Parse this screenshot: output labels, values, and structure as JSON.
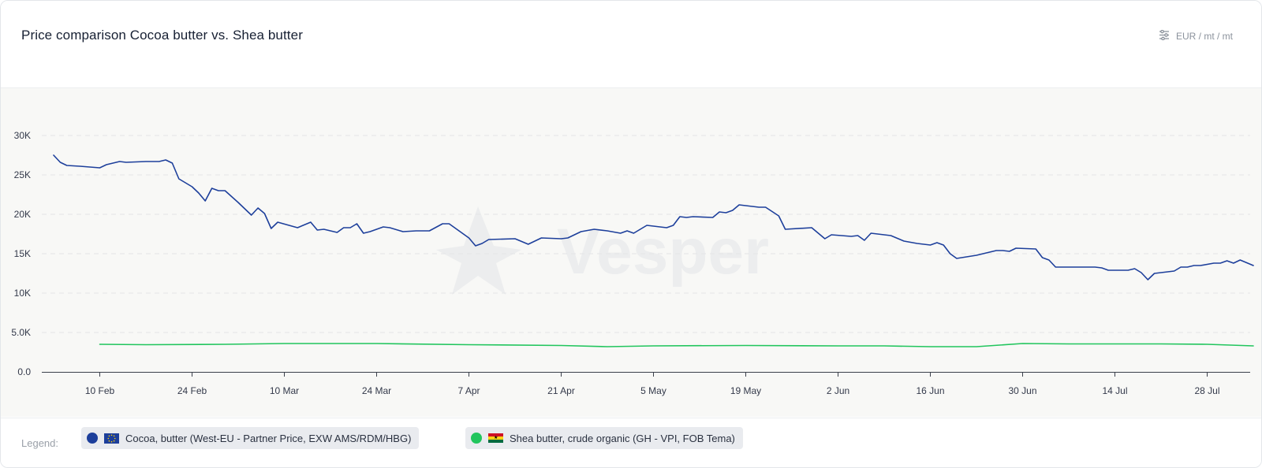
{
  "header": {
    "title": "Price comparison Cocoa butter vs. Shea butter",
    "unit_label": "EUR / mt / mt",
    "unit_icon": "sliders-icon"
  },
  "watermark": {
    "text": "Vesper"
  },
  "legend": {
    "label": "Legend:",
    "items": [
      {
        "name": "Cocoa, butter (West-EU - Partner Price, EXW AMS/RDM/HBG)",
        "color": "#1d3f9b",
        "flag": "eu-flag-icon"
      },
      {
        "name": "Shea butter, crude organic (GH - VPI, FOB Tema)",
        "color": "#21c55d",
        "flag": "ghana-flag-icon"
      }
    ]
  },
  "chart_data": {
    "type": "line",
    "title": "Price comparison Cocoa butter vs. Shea butter",
    "xlabel": "",
    "ylabel": "",
    "ylim": [
      0,
      30000
    ],
    "grid": true,
    "legend_position": "bottom",
    "y_ticks": [
      {
        "value": 0,
        "label": "0.0"
      },
      {
        "value": 5000,
        "label": "5.0K"
      },
      {
        "value": 10000,
        "label": "10K"
      },
      {
        "value": 15000,
        "label": "15K"
      },
      {
        "value": 20000,
        "label": "20K"
      },
      {
        "value": 25000,
        "label": "25K"
      },
      {
        "value": 30000,
        "label": "30K"
      }
    ],
    "x_ticks": [
      "10 Feb",
      "24 Feb",
      "10 Mar",
      "24 Mar",
      "7 Apr",
      "21 Apr",
      "5 May",
      "19 May",
      "2 Jun",
      "16 Jun",
      "30 Jun",
      "14 Jul",
      "28 Jul"
    ],
    "x_range": [
      "2025-02-03",
      "2025-08-04"
    ],
    "series": [
      {
        "name": "Cocoa, butter (West-EU - Partner Price, EXW AMS/RDM/HBG)",
        "color": "#1d3f9b",
        "points": [
          [
            "2025-02-03",
            27500
          ],
          [
            "2025-02-04",
            26600
          ],
          [
            "2025-02-05",
            26200
          ],
          [
            "2025-02-07",
            26100
          ],
          [
            "2025-02-10",
            25900
          ],
          [
            "2025-02-11",
            26300
          ],
          [
            "2025-02-13",
            26700
          ],
          [
            "2025-02-14",
            26600
          ],
          [
            "2025-02-17",
            26700
          ],
          [
            "2025-02-19",
            26700
          ],
          [
            "2025-02-20",
            26900
          ],
          [
            "2025-02-21",
            26500
          ],
          [
            "2025-02-22",
            24500
          ],
          [
            "2025-02-24",
            23500
          ],
          [
            "2025-02-25",
            22700
          ],
          [
            "2025-02-26",
            21700
          ],
          [
            "2025-02-27",
            23300
          ],
          [
            "2025-02-28",
            23000
          ],
          [
            "2025-03-01",
            23000
          ],
          [
            "2025-03-03",
            21500
          ],
          [
            "2025-03-05",
            19900
          ],
          [
            "2025-03-06",
            20800
          ],
          [
            "2025-03-07",
            20100
          ],
          [
            "2025-03-08",
            18200
          ],
          [
            "2025-03-09",
            19000
          ],
          [
            "2025-03-12",
            18300
          ],
          [
            "2025-03-14",
            19000
          ],
          [
            "2025-03-15",
            18000
          ],
          [
            "2025-03-16",
            18100
          ],
          [
            "2025-03-18",
            17700
          ],
          [
            "2025-03-19",
            18300
          ],
          [
            "2025-03-20",
            18300
          ],
          [
            "2025-03-21",
            18800
          ],
          [
            "2025-03-22",
            17600
          ],
          [
            "2025-03-23",
            17800
          ],
          [
            "2025-03-25",
            18400
          ],
          [
            "2025-03-26",
            18300
          ],
          [
            "2025-03-28",
            17800
          ],
          [
            "2025-03-30",
            17900
          ],
          [
            "2025-04-01",
            17900
          ],
          [
            "2025-04-03",
            18800
          ],
          [
            "2025-04-04",
            18800
          ],
          [
            "2025-04-07",
            17000
          ],
          [
            "2025-04-08",
            16000
          ],
          [
            "2025-04-09",
            16300
          ],
          [
            "2025-04-10",
            16800
          ],
          [
            "2025-04-14",
            16900
          ],
          [
            "2025-04-16",
            16200
          ],
          [
            "2025-04-18",
            17000
          ],
          [
            "2025-04-21",
            16900
          ],
          [
            "2025-04-22",
            17000
          ],
          [
            "2025-04-24",
            17800
          ],
          [
            "2025-04-26",
            18100
          ],
          [
            "2025-04-28",
            17900
          ],
          [
            "2025-04-30",
            17600
          ],
          [
            "2025-05-01",
            17900
          ],
          [
            "2025-05-02",
            17600
          ],
          [
            "2025-05-04",
            18600
          ],
          [
            "2025-05-07",
            18300
          ],
          [
            "2025-05-08",
            18600
          ],
          [
            "2025-05-09",
            19700
          ],
          [
            "2025-05-10",
            19600
          ],
          [
            "2025-05-11",
            19700
          ],
          [
            "2025-05-14",
            19600
          ],
          [
            "2025-05-15",
            20300
          ],
          [
            "2025-05-16",
            20200
          ],
          [
            "2025-05-17",
            20500
          ],
          [
            "2025-05-18",
            21200
          ],
          [
            "2025-05-21",
            20900
          ],
          [
            "2025-05-22",
            20900
          ],
          [
            "2025-05-24",
            19800
          ],
          [
            "2025-05-25",
            18100
          ],
          [
            "2025-05-29",
            18300
          ],
          [
            "2025-05-31",
            16900
          ],
          [
            "2025-06-01",
            17400
          ],
          [
            "2025-06-04",
            17200
          ],
          [
            "2025-06-05",
            17300
          ],
          [
            "2025-06-06",
            16700
          ],
          [
            "2025-06-07",
            17600
          ],
          [
            "2025-06-10",
            17300
          ],
          [
            "2025-06-12",
            16600
          ],
          [
            "2025-06-14",
            16300
          ],
          [
            "2025-06-16",
            16100
          ],
          [
            "2025-06-17",
            16400
          ],
          [
            "2025-06-18",
            16100
          ],
          [
            "2025-06-19",
            15000
          ],
          [
            "2025-06-20",
            14400
          ],
          [
            "2025-06-23",
            14800
          ],
          [
            "2025-06-25",
            15200
          ],
          [
            "2025-06-26",
            15400
          ],
          [
            "2025-06-27",
            15400
          ],
          [
            "2025-06-28",
            15300
          ],
          [
            "2025-06-29",
            15700
          ],
          [
            "2025-07-02",
            15600
          ],
          [
            "2025-07-03",
            14500
          ],
          [
            "2025-07-04",
            14200
          ],
          [
            "2025-07-05",
            13300
          ],
          [
            "2025-07-08",
            13300
          ],
          [
            "2025-07-10",
            13300
          ],
          [
            "2025-07-11",
            13300
          ],
          [
            "2025-07-12",
            13200
          ],
          [
            "2025-07-13",
            12900
          ],
          [
            "2025-07-16",
            12900
          ],
          [
            "2025-07-17",
            13100
          ],
          [
            "2025-07-18",
            12600
          ],
          [
            "2025-07-19",
            11700
          ],
          [
            "2025-07-20",
            12500
          ],
          [
            "2025-07-23",
            12800
          ],
          [
            "2025-07-24",
            13300
          ],
          [
            "2025-07-25",
            13300
          ],
          [
            "2025-07-26",
            13500
          ],
          [
            "2025-07-27",
            13500
          ],
          [
            "2025-07-29",
            13800
          ],
          [
            "2025-07-30",
            13800
          ],
          [
            "2025-07-31",
            14100
          ],
          [
            "2025-08-01",
            13800
          ],
          [
            "2025-08-02",
            14200
          ],
          [
            "2025-08-04",
            13500
          ]
        ]
      },
      {
        "name": "Shea butter, crude organic (GH - VPI, FOB Tema)",
        "color": "#21c55d",
        "points": [
          [
            "2025-02-10",
            3500
          ],
          [
            "2025-02-17",
            3450
          ],
          [
            "2025-03-01",
            3500
          ],
          [
            "2025-03-10",
            3600
          ],
          [
            "2025-03-24",
            3600
          ],
          [
            "2025-04-07",
            3450
          ],
          [
            "2025-04-21",
            3350
          ],
          [
            "2025-04-28",
            3200
          ],
          [
            "2025-05-05",
            3300
          ],
          [
            "2025-05-19",
            3350
          ],
          [
            "2025-06-02",
            3300
          ],
          [
            "2025-06-09",
            3300
          ],
          [
            "2025-06-16",
            3200
          ],
          [
            "2025-06-23",
            3200
          ],
          [
            "2025-06-30",
            3600
          ],
          [
            "2025-07-07",
            3550
          ],
          [
            "2025-07-14",
            3550
          ],
          [
            "2025-07-21",
            3550
          ],
          [
            "2025-07-28",
            3500
          ],
          [
            "2025-08-04",
            3300
          ]
        ]
      }
    ]
  }
}
